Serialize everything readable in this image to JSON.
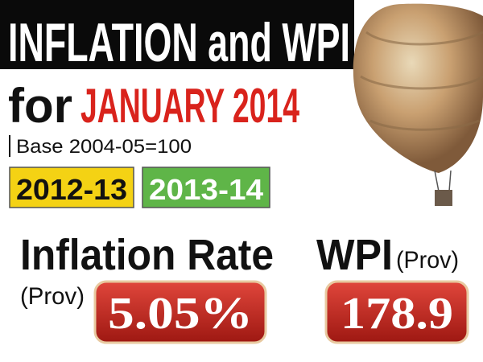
{
  "header": {
    "title": "INFLATION and WPI",
    "for_text": "for",
    "period": "JANUARY 2014",
    "base_note": "Base 2004-05=100"
  },
  "years": [
    "2012-13",
    "2013-14"
  ],
  "inflation": {
    "label": "Inflation Rate",
    "note": "(Prov)",
    "value": "5.05%"
  },
  "wpi": {
    "label": "WPI",
    "note": "(Prov)",
    "value": "178.9"
  }
}
